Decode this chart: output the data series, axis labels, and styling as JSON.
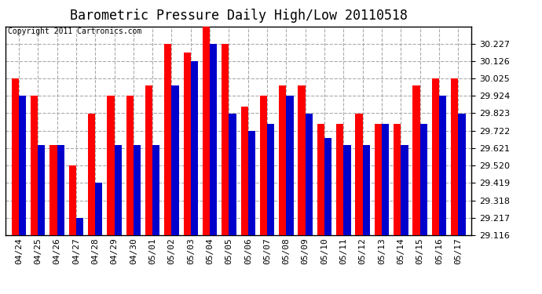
{
  "title": "Barometric Pressure Daily High/Low 20110518",
  "copyright": "Copyright 2011 Cartronics.com",
  "categories": [
    "04/24",
    "04/25",
    "04/26",
    "04/27",
    "04/28",
    "04/29",
    "04/30",
    "05/01",
    "05/02",
    "05/03",
    "05/04",
    "05/05",
    "05/06",
    "05/07",
    "05/08",
    "05/09",
    "05/10",
    "05/11",
    "05/12",
    "05/13",
    "05/14",
    "05/15",
    "05/16",
    "05/17"
  ],
  "highs": [
    30.023,
    29.923,
    29.64,
    29.519,
    29.822,
    29.923,
    29.923,
    29.983,
    30.225,
    30.175,
    30.326,
    30.225,
    29.862,
    29.923,
    29.983,
    29.983,
    29.761,
    29.761,
    29.822,
    29.761,
    29.761,
    29.983,
    30.023,
    30.023
  ],
  "lows": [
    29.923,
    29.64,
    29.64,
    29.217,
    29.419,
    29.64,
    29.64,
    29.64,
    29.983,
    30.124,
    30.225,
    29.822,
    29.722,
    29.761,
    29.923,
    29.822,
    29.68,
    29.64,
    29.64,
    29.761,
    29.64,
    29.761,
    29.923,
    29.822
  ],
  "bar_color_high": "#ff0000",
  "bar_color_low": "#0000cc",
  "background_color": "#ffffff",
  "plot_background": "#ffffff",
  "grid_color": "#aaaaaa",
  "ymin": 29.116,
  "ymax": 30.326,
  "ytick_step": 0.101,
  "title_fontsize": 12,
  "copyright_fontsize": 7,
  "tick_fontsize": 8,
  "bar_width": 0.38
}
